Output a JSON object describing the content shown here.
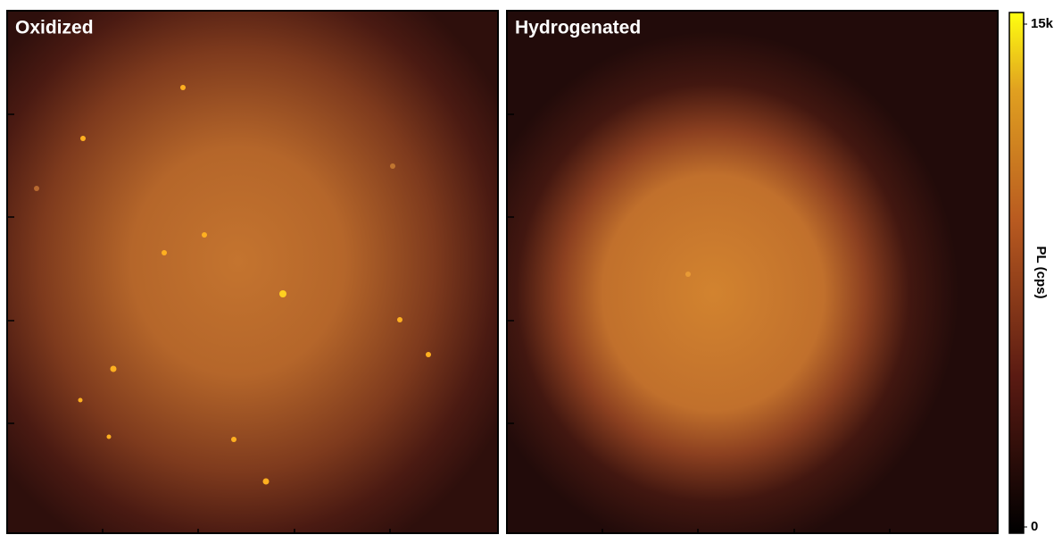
{
  "panels": [
    {
      "title": "Oxidized"
    },
    {
      "title": "Hydrogenated"
    }
  ],
  "colorbar": {
    "label": "PL (cps)",
    "lim": [
      0,
      15000
    ],
    "ticks": [
      {
        "value": 0,
        "label": "0"
      },
      {
        "value": 15000,
        "label": "15k"
      }
    ]
  }
}
